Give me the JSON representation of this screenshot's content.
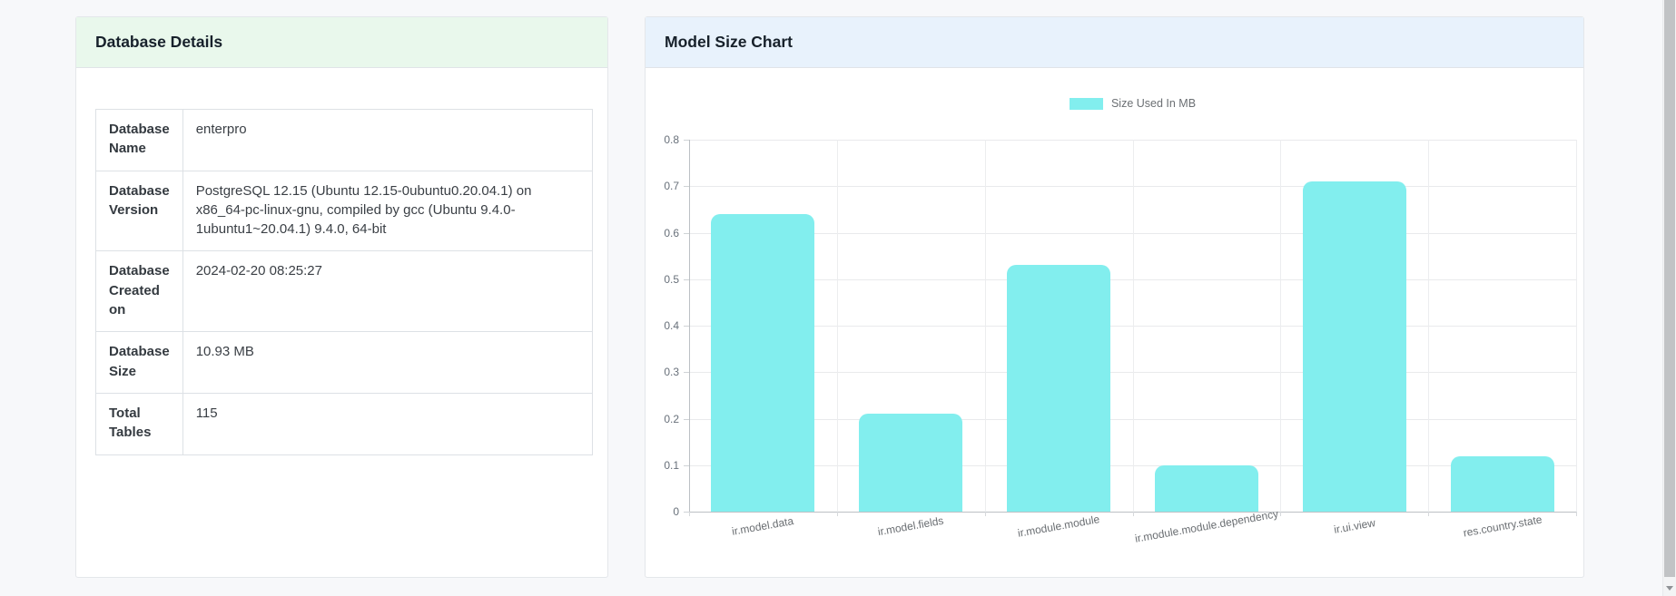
{
  "left_card": {
    "title": "Database Details",
    "header_bg": "#e9f8ec",
    "rows": [
      {
        "label": "Database Name",
        "value": "enterpro"
      },
      {
        "label": "Database Version",
        "value": "PostgreSQL 12.15 (Ubuntu 12.15-0ubuntu0.20.04.1) on x86_64-pc-linux-gnu, compiled by gcc (Ubuntu 9.4.0-1ubuntu1~20.04.1) 9.4.0, 64-bit"
      },
      {
        "label": "Database Created on",
        "value": "2024-02-20 08:25:27"
      },
      {
        "label": "Database Size",
        "value": "10.93 MB"
      },
      {
        "label": "Total Tables",
        "value": "115"
      }
    ]
  },
  "right_card": {
    "title": "Model Size Chart",
    "header_bg": "#e8f2fc"
  },
  "chart_data": {
    "type": "bar",
    "title": "Model Size Chart",
    "categories": [
      "ir.model.data",
      "ir.model.fields",
      "ir.module.module",
      "ir.module.module.dependency",
      "ir.ui.view",
      "res.country.state"
    ],
    "values": [
      0.64,
      0.21,
      0.53,
      0.1,
      0.71,
      0.12
    ],
    "xlabel": "",
    "ylabel": "",
    "ylim": [
      0,
      0.8
    ],
    "ytick_step": 0.1,
    "yticks": [
      "0.8",
      "0.7",
      "0.6",
      "0.5",
      "0.4",
      "0.3",
      "0.2",
      "0.1",
      "0"
    ],
    "grid": true,
    "legend_position": "top",
    "bar_color": "#82eeee",
    "legend": [
      {
        "label": "Size Used In MB",
        "color": "#82eeee"
      }
    ]
  }
}
